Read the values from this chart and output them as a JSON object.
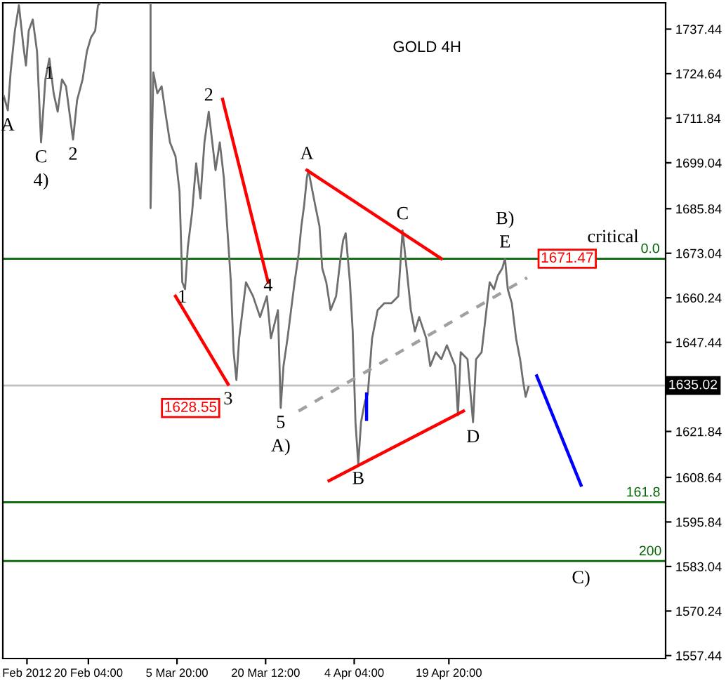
{
  "chart_data": {
    "type": "line",
    "title": "GOLD 4H",
    "xlim": [
      "2012-02-06T00:00",
      "2012-05-25T17:00"
    ],
    "ylim": [
      1556.6,
      1745.0
    ],
    "xticks": [
      {
        "value": "2012-02-10T00:00",
        "label": "Feb 2012"
      },
      {
        "value": "2012-02-20T04:00",
        "label": "20 Feb 04:00"
      },
      {
        "value": "2012-03-05T20:00",
        "label": "5 Mar 20:00"
      },
      {
        "value": "2012-03-20T12:00",
        "label": "20 Mar 12:00"
      },
      {
        "value": "2012-04-04T04:00",
        "label": "4 Apr 04:00"
      },
      {
        "value": "2012-04-19T20:00",
        "label": "19 Apr 20:00"
      }
    ],
    "yticks": [
      1557.44,
      1570.24,
      1583.04,
      1595.84,
      1608.64,
      1621.84,
      1647.44,
      1660.24,
      1673.04,
      1685.84,
      1699.04,
      1711.84,
      1724.64,
      1737.44
    ],
    "grid": false,
    "legend": false,
    "series": [
      {
        "color": "#6e6e6e",
        "x": [
          "2012-02-06T04:00",
          "2012-02-06T20:00",
          "2012-02-07T07:00",
          "2012-02-08T00:00",
          "2012-02-08T16:00",
          "2012-02-09T09:00",
          "2012-02-09T20:00",
          "2012-02-10T07:00",
          "2012-02-10T23:00",
          "2012-02-11T16:00",
          "2012-02-12T08:00",
          "2012-02-13T01:00",
          "2012-02-13T17:00",
          "2012-02-14T10:00",
          "2012-02-15T02:00",
          "2012-02-15T19:00",
          "2012-02-16T11:00",
          "2012-02-17T15:00",
          "2012-02-18T07:00",
          "2012-02-19T05:00",
          "2012-02-19T22:00",
          "2012-02-20T14:00",
          "2012-02-21T07:00",
          "2012-02-21T18:00",
          "2012-02-22T05:00",
          "2012-02-26T08:00",
          "2012-03-01T11:00",
          "2012-03-01T11:00",
          "2012-03-01T22:00",
          "2012-03-02T14:00",
          "2012-03-03T07:00",
          "2012-03-03T23:00",
          "2012-03-04T16:00",
          "2012-03-05T14:00",
          "2012-03-06T06:00",
          "2012-03-06T17:00",
          "2012-03-07T04:00",
          "2012-03-07T15:00",
          "2012-03-08T08:00",
          "2012-03-09T00:00",
          "2012-03-09T17:00",
          "2012-03-10T09:00",
          "2012-03-11T02:00",
          "2012-03-11T13:00",
          "2012-03-12T05:00",
          "2012-03-12T22:00",
          "2012-03-13T14:00",
          "2012-03-14T07:00",
          "2012-03-14T18:00",
          "2012-03-15T05:00",
          "2012-03-15T16:00",
          "2012-03-16T03:00",
          "2012-03-17T06:00",
          "2012-03-18T10:00",
          "2012-03-19T14:00",
          "2012-03-20T17:00",
          "2012-03-21T09:00",
          "2012-03-22T13:00",
          "2012-03-23T00:00",
          "2012-03-23T11:00",
          "2012-03-24T03:00",
          "2012-03-25T07:00",
          "2012-03-25T23:00",
          "2012-03-26T10:00",
          "2012-03-26T21:00",
          "2012-03-27T08:00",
          "2012-03-27T14:00",
          "2012-03-28T17:00",
          "2012-03-29T10:00",
          "2012-03-29T21:00",
          "2012-03-30T13:00",
          "2012-03-31T06:00",
          "2012-04-01T04:00",
          "2012-04-01T20:00",
          "2012-04-02T08:00",
          "2012-04-02T18:00",
          "2012-04-03T11:00",
          "2012-04-03T22:00",
          "2012-04-04T09:00",
          "2012-04-04T20:00",
          "2012-04-05T07:00",
          "2012-04-05T23:00",
          "2012-04-06T10:00",
          "2012-04-07T03:00",
          "2012-04-08T01:00",
          "2012-04-09T04:00",
          "2012-04-10T08:00",
          "2012-04-11T11:00",
          "2012-04-12T04:00",
          "2012-04-12T20:00",
          "2012-04-13T13:00",
          "2012-04-14T05:00",
          "2012-04-14T22:00",
          "2012-04-16T02:00",
          "2012-04-16T18:00",
          "2012-04-17T16:00",
          "2012-04-18T14:00",
          "2012-04-19T12:00",
          "2012-04-20T21:00",
          "2012-04-21T08:00",
          "2012-04-21T19:00",
          "2012-04-22T22:00",
          "2012-04-23T20:00",
          "2012-04-24T08:00",
          "2012-04-25T06:00",
          "2012-04-25T22:00",
          "2012-04-26T14:00",
          "2012-04-27T07:00",
          "2012-04-27T23:00",
          "2012-04-28T16:00",
          "2012-04-29T03:00",
          "2012-04-29T14:00",
          "2012-04-30T06:00",
          "2012-04-30T23:00",
          "2012-05-01T15:00",
          "2012-05-02T02:00",
          "2012-05-02T13:00",
          "2012-05-03T00:00"
        ],
        "values": [
          1718.2,
          1714.1,
          1725.0,
          1737.0,
          1744.3,
          1733.0,
          1727.0,
          1737.0,
          1740.2,
          1731.0,
          1704.9,
          1723.0,
          1729.0,
          1719.0,
          1713.7,
          1723.0,
          1721.0,
          1705.7,
          1717.0,
          1723.0,
          1731.0,
          1735.0,
          1737.0,
          1744.3,
          1745.0,
          null,
          1744.3,
          1686.0,
          1725.0,
          1719.0,
          1721.0,
          1712.9,
          1704.9,
          1700.9,
          1690.8,
          1664.7,
          1662.7,
          1674.8,
          1684.8,
          1698.9,
          1688.8,
          1704.9,
          1713.7,
          1706.9,
          1696.9,
          1704.9,
          1694.8,
          1676.8,
          1664.7,
          1644.6,
          1636.6,
          1648.6,
          1664.7,
          1660.7,
          1654.7,
          1660.7,
          1648.6,
          1656.7,
          1628.6,
          1640.6,
          1648.6,
          1664.7,
          1672.7,
          1680.8,
          1686.8,
          1694.8,
          1696.9,
          1686.8,
          1680.8,
          1668.7,
          1664.7,
          1656.7,
          1660.7,
          1670.7,
          1676.8,
          1678.8,
          1664.7,
          1650.6,
          1624.5,
          1612.5,
          1624.5,
          1630.6,
          1632.6,
          1648.6,
          1656.7,
          1658.7,
          1658.7,
          1660.7,
          1679.6,
          1668.7,
          1656.7,
          1650.6,
          1654.7,
          1648.6,
          1640.6,
          1644.6,
          1642.6,
          1646.6,
          1640.6,
          1626.5,
          1644.6,
          1642.6,
          1624.5,
          1642.6,
          1644.6,
          1654.7,
          1664.7,
          1662.7,
          1666.7,
          1668.7,
          1671.5,
          1662.7,
          1658.7,
          1648.6,
          1642.6,
          1636.6,
          1631.8,
          1634.6
        ]
      },
      {
        "color": "#ff0000",
        "x": [
          "2012-03-27T08:00",
          "2012-04-18T14:00"
        ],
        "values": [
          1696.9,
          1671.5
        ]
      },
      {
        "color": "#ff0000",
        "x": [
          "2012-03-31T00:00",
          "2012-04-22T06:00"
        ],
        "values": [
          1607.7,
          1627.7
        ]
      },
      {
        "color": "#ff0000",
        "x": [
          "2012-03-13T09:00",
          "2012-03-20T22:00"
        ],
        "values": [
          1717.3,
          1664.7
        ]
      },
      {
        "color": "#ff0000",
        "x": [
          "2012-03-05T14:00",
          "2012-03-14T07:00"
        ],
        "values": [
          1660.7,
          1635.4
        ]
      },
      {
        "color": "#a0a0a0",
        "x": [
          "2012-03-25T23:00",
          "2012-05-02T19:00"
        ],
        "values": [
          1627.7,
          1666.0
        ],
        "line_style": "dashed"
      },
      {
        "color": "#0000ff",
        "x": [
          "2012-05-04T09:00",
          "2012-05-11T17:00"
        ],
        "values": [
          1637.8,
          1606.4
        ]
      },
      {
        "color": "#0000ff",
        "x": [
          "2012-04-06T05:00",
          "2012-04-06T05:00"
        ],
        "values": [
          1632.6,
          1625.3
        ]
      }
    ],
    "ref_lines": [
      {
        "axis": "y",
        "value": 1635.02,
        "label": "1635.02",
        "color": "#c0c0c0"
      },
      {
        "axis": "y",
        "value": 1671.47,
        "color": "#006400"
      },
      {
        "axis": "y",
        "value": 1601.5,
        "color": "#006400"
      },
      {
        "axis": "y",
        "value": 1584.6,
        "color": "#006400"
      }
    ],
    "annotations": [
      {
        "text": "1",
        "x": "2012-02-13T17:00",
        "y": 1729.0
      },
      {
        "text": "A",
        "x": "2012-02-06T20:00",
        "y": 1714.1
      },
      {
        "text": "2",
        "x": "2012-02-17T15:00",
        "y": 1705.7
      },
      {
        "text": "C",
        "x": "2012-02-12T08:00",
        "y": 1704.9
      },
      {
        "text": "4)",
        "x": "2012-02-12T08:00",
        "y": 1704.9
      },
      {
        "text": "2",
        "x": "2012-03-11T02:00",
        "y": 1713.7
      },
      {
        "text": "1",
        "x": "2012-03-06T17:00",
        "y": 1664.7
      },
      {
        "text": "4",
        "x": "2012-03-20T22:00",
        "y": 1668.0
      },
      {
        "text": "3",
        "x": "2012-03-14T07:00",
        "y": 1635.4
      },
      {
        "text": "5",
        "x": "2012-03-23T00:00",
        "y": 1628.6
      },
      {
        "text": "A)",
        "x": "2012-03-23T00:00",
        "y": 1628.6
      },
      {
        "text": "A",
        "x": "2012-03-27T08:00",
        "y": 1696.9
      },
      {
        "text": "C",
        "x": "2012-04-12T04:00",
        "y": 1679.6
      },
      {
        "text": "E",
        "x": "2012-04-29T03:00",
        "y": 1671.5
      },
      {
        "text": "B)",
        "x": "2012-04-29T03:00",
        "y": 1671.5
      },
      {
        "text": "B",
        "x": "2012-04-04T20:00",
        "y": 1612.5
      },
      {
        "text": "D",
        "x": "2012-04-23T20:00",
        "y": 1624.5
      },
      {
        "text": "C)",
        "x": "2012-05-11T17:00",
        "y": 1584.0
      },
      {
        "text": "critical",
        "x": "2012-05-17T00:00",
        "y": 1673.0
      },
      {
        "text": "0.0",
        "x": "2012-05-23T04:00",
        "y": 1671.47
      },
      {
        "text": "161.8",
        "x": "2012-05-22T00:00",
        "y": 1601.5
      },
      {
        "text": "200",
        "x": "2012-05-23T04:00",
        "y": 1584.6
      },
      {
        "text": "1628.55",
        "x": "2012-03-08T02:00",
        "y": 1628.55
      },
      {
        "text": "1671.47",
        "x": "2012-05-09T10:00",
        "y": 1671.47
      }
    ]
  }
}
